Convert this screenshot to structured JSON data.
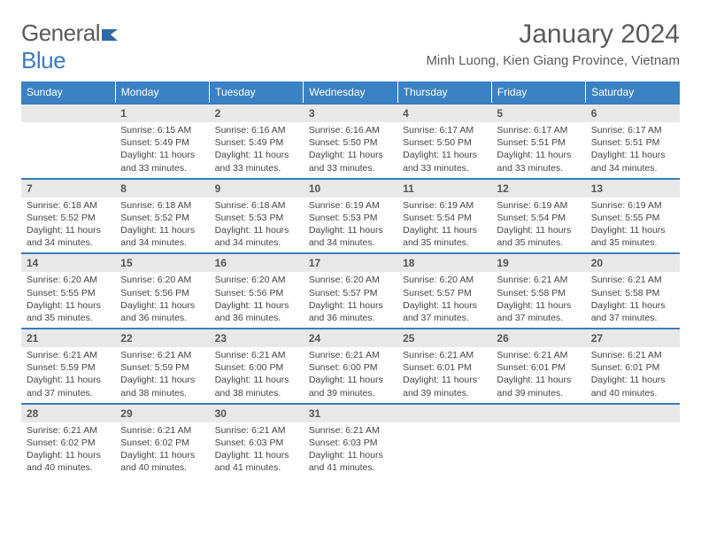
{
  "brand": {
    "name_part1": "General",
    "name_part2": "Blue"
  },
  "title": "January 2024",
  "location": "Minh Luong, Kien Giang Province, Vietnam",
  "weekdays": [
    "Sunday",
    "Monday",
    "Tuesday",
    "Wednesday",
    "Thursday",
    "Friday",
    "Saturday"
  ],
  "colors": {
    "header_bg": "#3b82c4",
    "header_text": "#ffffff",
    "rule": "#3b7bbf",
    "daynum_bg": "#e8e8e8",
    "text": "#444444",
    "title_text": "#5a5a5a"
  },
  "weeks": [
    [
      {
        "day": "",
        "sunrise": "",
        "sunset": "",
        "daylight": ""
      },
      {
        "day": "1",
        "sunrise": "Sunrise: 6:15 AM",
        "sunset": "Sunset: 5:49 PM",
        "daylight": "Daylight: 11 hours and 33 minutes."
      },
      {
        "day": "2",
        "sunrise": "Sunrise: 6:16 AM",
        "sunset": "Sunset: 5:49 PM",
        "daylight": "Daylight: 11 hours and 33 minutes."
      },
      {
        "day": "3",
        "sunrise": "Sunrise: 6:16 AM",
        "sunset": "Sunset: 5:50 PM",
        "daylight": "Daylight: 11 hours and 33 minutes."
      },
      {
        "day": "4",
        "sunrise": "Sunrise: 6:17 AM",
        "sunset": "Sunset: 5:50 PM",
        "daylight": "Daylight: 11 hours and 33 minutes."
      },
      {
        "day": "5",
        "sunrise": "Sunrise: 6:17 AM",
        "sunset": "Sunset: 5:51 PM",
        "daylight": "Daylight: 11 hours and 33 minutes."
      },
      {
        "day": "6",
        "sunrise": "Sunrise: 6:17 AM",
        "sunset": "Sunset: 5:51 PM",
        "daylight": "Daylight: 11 hours and 34 minutes."
      }
    ],
    [
      {
        "day": "7",
        "sunrise": "Sunrise: 6:18 AM",
        "sunset": "Sunset: 5:52 PM",
        "daylight": "Daylight: 11 hours and 34 minutes."
      },
      {
        "day": "8",
        "sunrise": "Sunrise: 6:18 AM",
        "sunset": "Sunset: 5:52 PM",
        "daylight": "Daylight: 11 hours and 34 minutes."
      },
      {
        "day": "9",
        "sunrise": "Sunrise: 6:18 AM",
        "sunset": "Sunset: 5:53 PM",
        "daylight": "Daylight: 11 hours and 34 minutes."
      },
      {
        "day": "10",
        "sunrise": "Sunrise: 6:19 AM",
        "sunset": "Sunset: 5:53 PM",
        "daylight": "Daylight: 11 hours and 34 minutes."
      },
      {
        "day": "11",
        "sunrise": "Sunrise: 6:19 AM",
        "sunset": "Sunset: 5:54 PM",
        "daylight": "Daylight: 11 hours and 35 minutes."
      },
      {
        "day": "12",
        "sunrise": "Sunrise: 6:19 AM",
        "sunset": "Sunset: 5:54 PM",
        "daylight": "Daylight: 11 hours and 35 minutes."
      },
      {
        "day": "13",
        "sunrise": "Sunrise: 6:19 AM",
        "sunset": "Sunset: 5:55 PM",
        "daylight": "Daylight: 11 hours and 35 minutes."
      }
    ],
    [
      {
        "day": "14",
        "sunrise": "Sunrise: 6:20 AM",
        "sunset": "Sunset: 5:55 PM",
        "daylight": "Daylight: 11 hours and 35 minutes."
      },
      {
        "day": "15",
        "sunrise": "Sunrise: 6:20 AM",
        "sunset": "Sunset: 5:56 PM",
        "daylight": "Daylight: 11 hours and 36 minutes."
      },
      {
        "day": "16",
        "sunrise": "Sunrise: 6:20 AM",
        "sunset": "Sunset: 5:56 PM",
        "daylight": "Daylight: 11 hours and 36 minutes."
      },
      {
        "day": "17",
        "sunrise": "Sunrise: 6:20 AM",
        "sunset": "Sunset: 5:57 PM",
        "daylight": "Daylight: 11 hours and 36 minutes."
      },
      {
        "day": "18",
        "sunrise": "Sunrise: 6:20 AM",
        "sunset": "Sunset: 5:57 PM",
        "daylight": "Daylight: 11 hours and 37 minutes."
      },
      {
        "day": "19",
        "sunrise": "Sunrise: 6:21 AM",
        "sunset": "Sunset: 5:58 PM",
        "daylight": "Daylight: 11 hours and 37 minutes."
      },
      {
        "day": "20",
        "sunrise": "Sunrise: 6:21 AM",
        "sunset": "Sunset: 5:58 PM",
        "daylight": "Daylight: 11 hours and 37 minutes."
      }
    ],
    [
      {
        "day": "21",
        "sunrise": "Sunrise: 6:21 AM",
        "sunset": "Sunset: 5:59 PM",
        "daylight": "Daylight: 11 hours and 37 minutes."
      },
      {
        "day": "22",
        "sunrise": "Sunrise: 6:21 AM",
        "sunset": "Sunset: 5:59 PM",
        "daylight": "Daylight: 11 hours and 38 minutes."
      },
      {
        "day": "23",
        "sunrise": "Sunrise: 6:21 AM",
        "sunset": "Sunset: 6:00 PM",
        "daylight": "Daylight: 11 hours and 38 minutes."
      },
      {
        "day": "24",
        "sunrise": "Sunrise: 6:21 AM",
        "sunset": "Sunset: 6:00 PM",
        "daylight": "Daylight: 11 hours and 39 minutes."
      },
      {
        "day": "25",
        "sunrise": "Sunrise: 6:21 AM",
        "sunset": "Sunset: 6:01 PM",
        "daylight": "Daylight: 11 hours and 39 minutes."
      },
      {
        "day": "26",
        "sunrise": "Sunrise: 6:21 AM",
        "sunset": "Sunset: 6:01 PM",
        "daylight": "Daylight: 11 hours and 39 minutes."
      },
      {
        "day": "27",
        "sunrise": "Sunrise: 6:21 AM",
        "sunset": "Sunset: 6:01 PM",
        "daylight": "Daylight: 11 hours and 40 minutes."
      }
    ],
    [
      {
        "day": "28",
        "sunrise": "Sunrise: 6:21 AM",
        "sunset": "Sunset: 6:02 PM",
        "daylight": "Daylight: 11 hours and 40 minutes."
      },
      {
        "day": "29",
        "sunrise": "Sunrise: 6:21 AM",
        "sunset": "Sunset: 6:02 PM",
        "daylight": "Daylight: 11 hours and 40 minutes."
      },
      {
        "day": "30",
        "sunrise": "Sunrise: 6:21 AM",
        "sunset": "Sunset: 6:03 PM",
        "daylight": "Daylight: 11 hours and 41 minutes."
      },
      {
        "day": "31",
        "sunrise": "Sunrise: 6:21 AM",
        "sunset": "Sunset: 6:03 PM",
        "daylight": "Daylight: 11 hours and 41 minutes."
      },
      {
        "day": "",
        "sunrise": "",
        "sunset": "",
        "daylight": ""
      },
      {
        "day": "",
        "sunrise": "",
        "sunset": "",
        "daylight": ""
      },
      {
        "day": "",
        "sunrise": "",
        "sunset": "",
        "daylight": ""
      }
    ]
  ]
}
